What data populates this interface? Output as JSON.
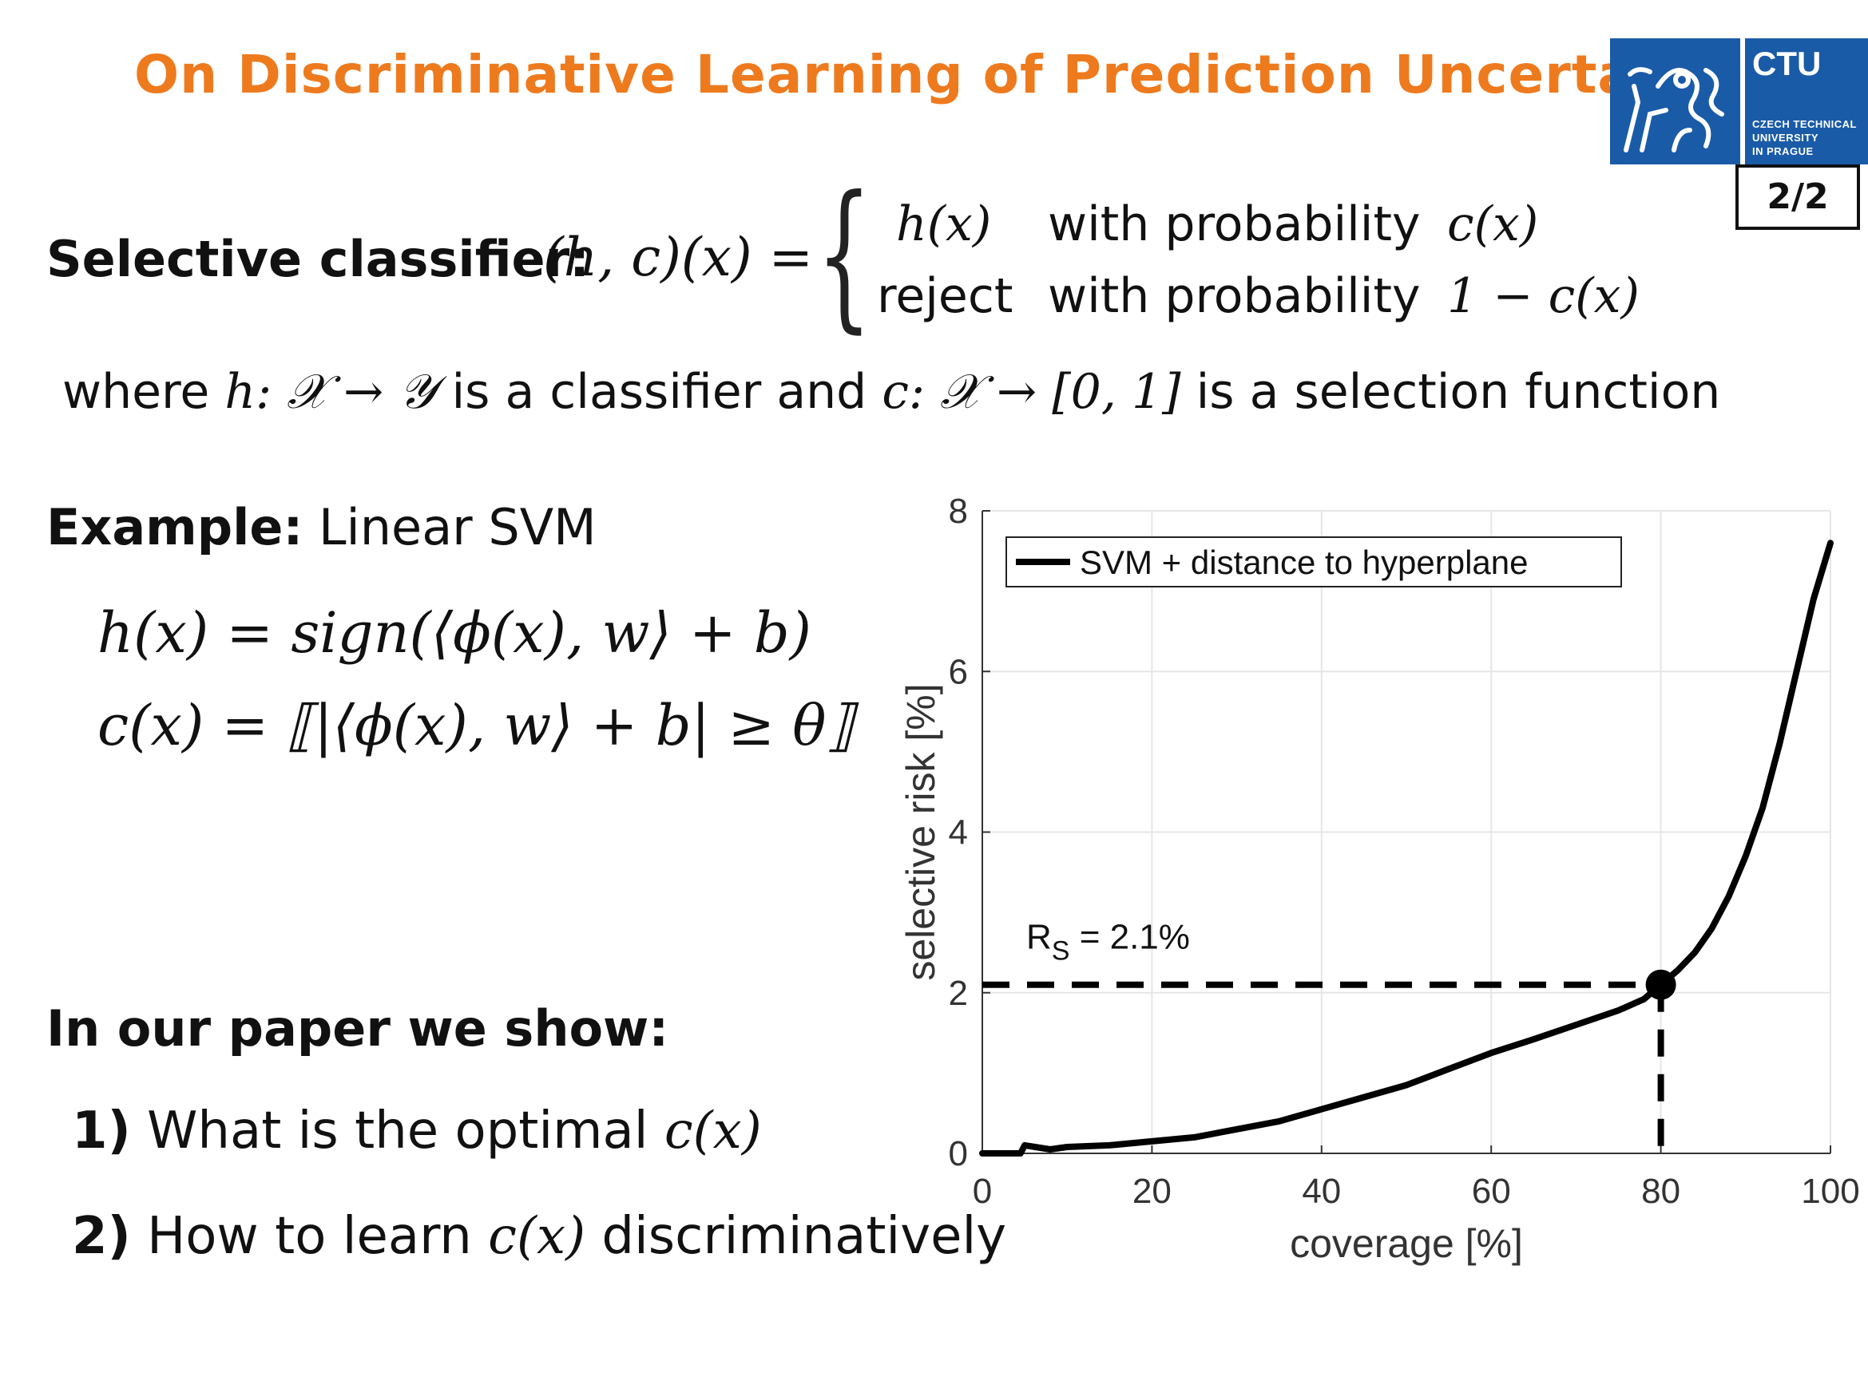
{
  "slide": {
    "title": "On Discriminative Learning of Prediction Uncertainty",
    "page_indicator": "2/2"
  },
  "logo": {
    "name": "CTU",
    "line1": "CZECH TECHNICAL",
    "line2": "UNIVERSITY",
    "line3": "IN PRAGUE",
    "color": "#1a5ba8"
  },
  "selective": {
    "label": "Selective classifier:",
    "lhs": "(h, c)(x) =",
    "case1_value": "h(x)",
    "case1_text": "with probability",
    "case1_prob": "c(x)",
    "case2_value": "reject",
    "case2_text": "with probability",
    "case2_prob": "1 − c(x)"
  },
  "where": {
    "w1": "where",
    "m1": "h: 𝒳 → 𝒴",
    "w2": "is a classifier and",
    "m2": "c: 𝒳 → [0, 1]",
    "w3": "is a selection function"
  },
  "example": {
    "label": "Example:",
    "value": "Linear SVM",
    "eq1": "h(x) = sign(⟨ϕ(x), w⟩ + b)",
    "eq2": "c(x) = ⟦|⟨ϕ(x), w⟩ + b| ≥ θ⟧"
  },
  "paper": {
    "heading": "In our paper we show:",
    "items": [
      {
        "num": "1)",
        "pre": "What is the optimal",
        "math": "c(x)",
        "post": ""
      },
      {
        "num": "2)",
        "pre": "How to learn",
        "math": "c(x)",
        "post": "discriminatively"
      }
    ]
  },
  "chart_data": {
    "type": "line",
    "xlabel": "coverage [%]",
    "ylabel": "selective risk [%]",
    "xlim": [
      0,
      100
    ],
    "ylim": [
      0,
      8
    ],
    "xticks": [
      0,
      20,
      40,
      60,
      80,
      100
    ],
    "yticks": [
      0,
      2,
      4,
      6,
      8
    ],
    "grid": true,
    "legend_position": "top-left",
    "series": [
      {
        "name": "SVM + distance to hyperplane",
        "color": "#000000",
        "x": [
          0,
          4.5,
          5,
          8,
          10,
          15,
          20,
          25,
          30,
          35,
          40,
          45,
          50,
          55,
          60,
          65,
          70,
          75,
          78,
          80,
          82,
          84,
          86,
          88,
          90,
          92,
          94,
          96,
          98,
          100
        ],
        "y": [
          0,
          0,
          0.1,
          0.05,
          0.08,
          0.1,
          0.15,
          0.2,
          0.3,
          0.4,
          0.55,
          0.7,
          0.85,
          1.05,
          1.25,
          1.42,
          1.6,
          1.78,
          1.92,
          2.1,
          2.28,
          2.5,
          2.8,
          3.2,
          3.7,
          4.3,
          5.1,
          6.0,
          6.9,
          7.6
        ]
      }
    ],
    "marker": {
      "x": 80,
      "y": 2.1
    },
    "annotation": {
      "text_main": "R",
      "text_sub": "S",
      "text_rest": " = 2.1%"
    }
  }
}
